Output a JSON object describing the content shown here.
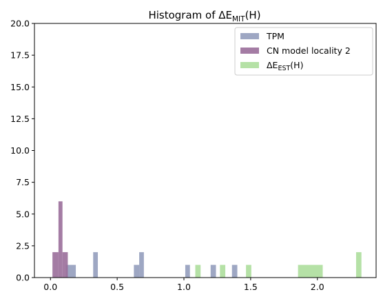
{
  "chart_data": {
    "type": "bar",
    "subtype": "histogram",
    "title_prefix": "Histogram of ΔE",
    "title_sub": "MIT",
    "title_suffix": "(H)",
    "xlabel": "",
    "ylabel": "",
    "xlim": [
      -0.12,
      2.44
    ],
    "ylim": [
      0,
      20
    ],
    "xticks": [
      0.0,
      0.5,
      1.0,
      1.5,
      2.0
    ],
    "xtick_labels": [
      "0.0",
      "0.5",
      "1.0",
      "1.5",
      "2.0"
    ],
    "yticks": [
      0,
      2.5,
      5,
      7.5,
      10,
      12.5,
      15,
      17.5,
      20
    ],
    "ytick_labels": [
      "0.0",
      "2.5",
      "5.0",
      "7.5",
      "10.0",
      "12.5",
      "15.0",
      "17.5",
      "20.0"
    ],
    "legend_position": "top-right",
    "grid": false,
    "series": [
      {
        "name": "TPM",
        "color": "#8d98b8",
        "opacity": 0.85,
        "bins": [
          {
            "x0": 0.115,
            "x1": 0.19,
            "count": 1
          },
          {
            "x0": 0.32,
            "x1": 0.355,
            "count": 2
          },
          {
            "x0": 0.625,
            "x1": 0.665,
            "count": 1
          },
          {
            "x0": 0.665,
            "x1": 0.7,
            "count": 2
          },
          {
            "x0": 1.01,
            "x1": 1.045,
            "count": 1
          },
          {
            "x0": 1.2,
            "x1": 1.24,
            "count": 1
          },
          {
            "x0": 1.36,
            "x1": 1.4,
            "count": 1
          }
        ]
      },
      {
        "name": "CN model locality 2",
        "color": "#9a6e9a",
        "opacity": 0.9,
        "bins": [
          {
            "x0": 0.015,
            "x1": 0.06,
            "count": 2
          },
          {
            "x0": 0.06,
            "x1": 0.09,
            "count": 6
          },
          {
            "x0": 0.09,
            "x1": 0.13,
            "count": 2
          }
        ]
      },
      {
        "name": "ΔE",
        "name_sub": "EST",
        "name_suffix": "(H)",
        "color": "#a8dc97",
        "opacity": 0.85,
        "bins": [
          {
            "x0": 1.085,
            "x1": 1.125,
            "count": 1
          },
          {
            "x0": 1.27,
            "x1": 1.31,
            "count": 1
          },
          {
            "x0": 1.465,
            "x1": 1.505,
            "count": 1
          },
          {
            "x0": 1.855,
            "x1": 2.04,
            "count": 1
          },
          {
            "x0": 2.29,
            "x1": 2.33,
            "count": 2
          }
        ]
      }
    ]
  }
}
